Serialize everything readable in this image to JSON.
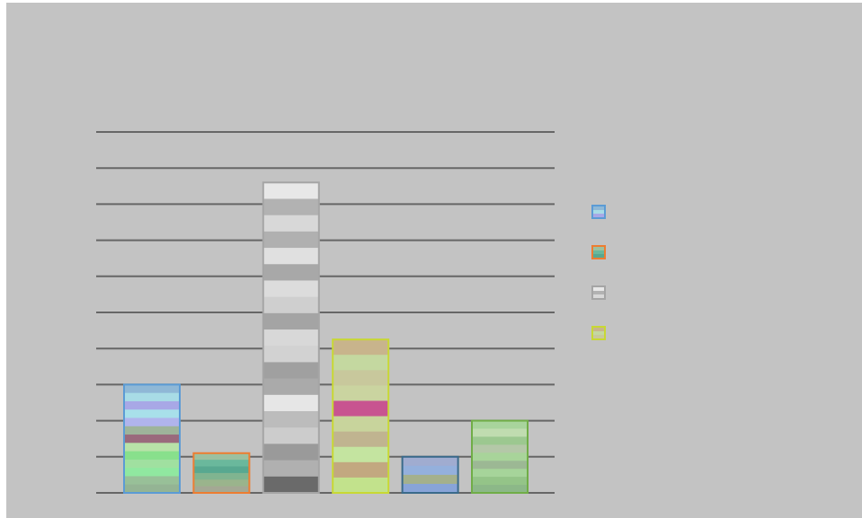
{
  "chart_data": {
    "type": "bar",
    "stacked": true,
    "title": "",
    "xlabel": "",
    "ylabel": "",
    "ylim": [
      0,
      10
    ],
    "ytick_count": 11,
    "grid": true,
    "legend": "right",
    "categories": [
      "",
      "",
      "",
      "",
      "",
      ""
    ],
    "totals": [
      3.0,
      1.1,
      8.6,
      4.25,
      1.0,
      2.0
    ],
    "series": [
      {
        "border": "#5b9bd5",
        "stripes": [
          "#8fb8d6",
          "#a8dce6",
          "#a8a8e6",
          "#a8e0ea",
          "#b0b4ec",
          "#9eb49a",
          "#9a6a7c",
          "#b8e2a8",
          "#88e08c",
          "#a0e0a0",
          "#90e8a0",
          "#98c098",
          "#94b494"
        ],
        "total": 3.0
      },
      {
        "border": "#ed7d31",
        "stripes": [
          "#9cc0a0",
          "#6ab89c",
          "#58a890",
          "#80b490",
          "#9ab48c",
          "#a4a894"
        ],
        "total": 1.1
      },
      {
        "border": "#a5a5a5",
        "stripes": [
          "#e8e8e8",
          "#b2b2b2",
          "#d8d8d8",
          "#b0b0b0",
          "#e0e0e0",
          "#a8a8a8",
          "#dcdcdc",
          "#cfcfcf",
          "#a4a4a4",
          "#d8d8d8",
          "#d2d2d2",
          "#a0a0a0",
          "#aaaaaa",
          "#e6e6e6",
          "#bcbcbc",
          "#cccccc",
          "#9a9a9a",
          "#b0b0b0",
          "#6a6a6a"
        ],
        "total": 8.6
      },
      {
        "border": "#c8d834",
        "stripes": [
          "#c8b48c",
          "#c4d8a0",
          "#c8c89c",
          "#cad4a0",
          "#c85490",
          "#c8d49c",
          "#c0b490",
          "#c4e4a0",
          "#c2a880",
          "#c2e28c"
        ],
        "total": 4.25
      },
      {
        "border": "#3a6a8a",
        "stripes": [
          "#a0acd0",
          "#94b0dc",
          "#a4b08c",
          "#88a4d8"
        ],
        "total": 1.0
      },
      {
        "border": "#70ad47",
        "stripes": [
          "#a8d49c",
          "#c0dcb0",
          "#9cc890",
          "#b4c8a8",
          "#a8d49a",
          "#9cb894",
          "#a6d49a",
          "#94c488",
          "#8cb888"
        ],
        "total": 2.0
      }
    ]
  }
}
